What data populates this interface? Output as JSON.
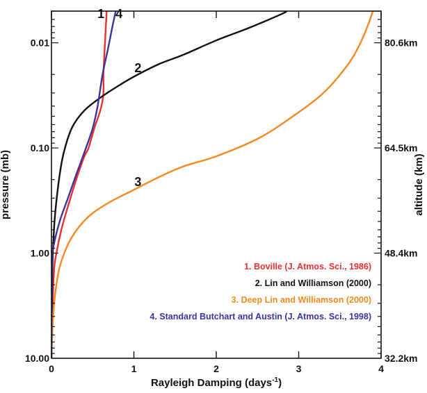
{
  "chart_data": {
    "type": "line",
    "xlabel": "Rayleigh Damping (days",
    "xlabel_superscript": "-1",
    "xlabel_suffix": ")",
    "ylabel": "pressure (mb)",
    "ylabel_right": "altitude (km)",
    "xlim": [
      0,
      4
    ],
    "ylim": [
      10,
      0.005
    ],
    "yscale": "log",
    "x_ticks": [
      {
        "value": 0,
        "label": "0"
      },
      {
        "value": 1,
        "label": "1"
      },
      {
        "value": 2,
        "label": "2"
      },
      {
        "value": 3,
        "label": "3"
      },
      {
        "value": 4,
        "label": "4"
      }
    ],
    "y_ticks": [
      {
        "value": 0.01,
        "label": "0.01"
      },
      {
        "value": 0.1,
        "label": "0.10"
      },
      {
        "value": 1,
        "label": "1.00"
      },
      {
        "value": 10,
        "label": "10.00"
      }
    ],
    "right_ticks": [
      {
        "value": 0.01,
        "label": "80.6km"
      },
      {
        "value": 0.1,
        "label": "64.5km"
      },
      {
        "value": 1,
        "label": "48.4km"
      },
      {
        "value": 10,
        "label": "32.2km"
      }
    ],
    "series": [
      {
        "name": "1. Boville (J. Atmos. Sci., 1986)",
        "label": "1",
        "color": "#e8312e",
        "label_at": {
          "x": 0.6,
          "p": 0.0058
        },
        "points": [
          [
            0.0,
            10.0
          ],
          [
            0.01,
            4.0
          ],
          [
            0.03,
            1.5
          ],
          [
            0.06,
            1.0
          ],
          [
            0.12,
            0.6
          ],
          [
            0.2,
            0.36
          ],
          [
            0.3,
            0.2
          ],
          [
            0.4,
            0.12
          ],
          [
            0.45,
            0.1
          ],
          [
            0.52,
            0.065
          ],
          [
            0.6,
            0.042
          ],
          [
            0.63,
            0.03
          ],
          [
            0.63,
            0.02
          ],
          [
            0.64,
            0.014
          ],
          [
            0.65,
            0.01
          ],
          [
            0.66,
            0.007
          ],
          [
            0.67,
            0.005
          ]
        ]
      },
      {
        "name": "2. Lin and Williamson (2000)",
        "label": "2",
        "color": "#111111",
        "label_at": {
          "x": 1.05,
          "p": 0.019
        },
        "points": [
          [
            0.0,
            10.0
          ],
          [
            0.01,
            1.5
          ],
          [
            0.03,
            0.6
          ],
          [
            0.06,
            0.32
          ],
          [
            0.1,
            0.18
          ],
          [
            0.15,
            0.11
          ],
          [
            0.25,
            0.064
          ],
          [
            0.4,
            0.044
          ],
          [
            0.6,
            0.033
          ],
          [
            0.8,
            0.026
          ],
          [
            1.0,
            0.021
          ],
          [
            1.3,
            0.016
          ],
          [
            1.6,
            0.013
          ],
          [
            2.0,
            0.0095
          ],
          [
            2.4,
            0.0072
          ],
          [
            2.8,
            0.0053
          ],
          [
            2.85,
            0.005
          ]
        ]
      },
      {
        "name": "3. Deep Lin and Williamson (2000)",
        "label": "3",
        "color": "#f28a1e",
        "label_at": {
          "x": 1.05,
          "p": 0.23
        },
        "points": [
          [
            0.0,
            10.0
          ],
          [
            0.02,
            4.0
          ],
          [
            0.06,
            2.0
          ],
          [
            0.12,
            1.2
          ],
          [
            0.25,
            0.7
          ],
          [
            0.45,
            0.45
          ],
          [
            0.7,
            0.33
          ],
          [
            1.0,
            0.25
          ],
          [
            1.3,
            0.19
          ],
          [
            1.6,
            0.15
          ],
          [
            2.0,
            0.12
          ],
          [
            2.5,
            0.082
          ],
          [
            2.9,
            0.052
          ],
          [
            3.3,
            0.03
          ],
          [
            3.6,
            0.016
          ],
          [
            3.75,
            0.01
          ],
          [
            3.85,
            0.0065
          ],
          [
            3.9,
            0.005
          ]
        ]
      },
      {
        "name": "4. Standard Butchart and Austin (J. Atmos. Sci., 1998)",
        "label": "4",
        "color": "#3a33a0",
        "label_at": {
          "x": 0.82,
          "p": 0.0058
        },
        "points": [
          [
            0.0,
            10.0
          ],
          [
            0.005,
            1.3
          ],
          [
            0.02,
            0.9
          ],
          [
            0.1,
            0.5
          ],
          [
            0.2,
            0.3
          ],
          [
            0.3,
            0.18
          ],
          [
            0.4,
            0.11
          ],
          [
            0.5,
            0.065
          ],
          [
            0.56,
            0.04
          ],
          [
            0.62,
            0.02
          ],
          [
            0.68,
            0.012
          ],
          [
            0.74,
            0.007
          ],
          [
            0.78,
            0.005
          ]
        ]
      }
    ]
  }
}
